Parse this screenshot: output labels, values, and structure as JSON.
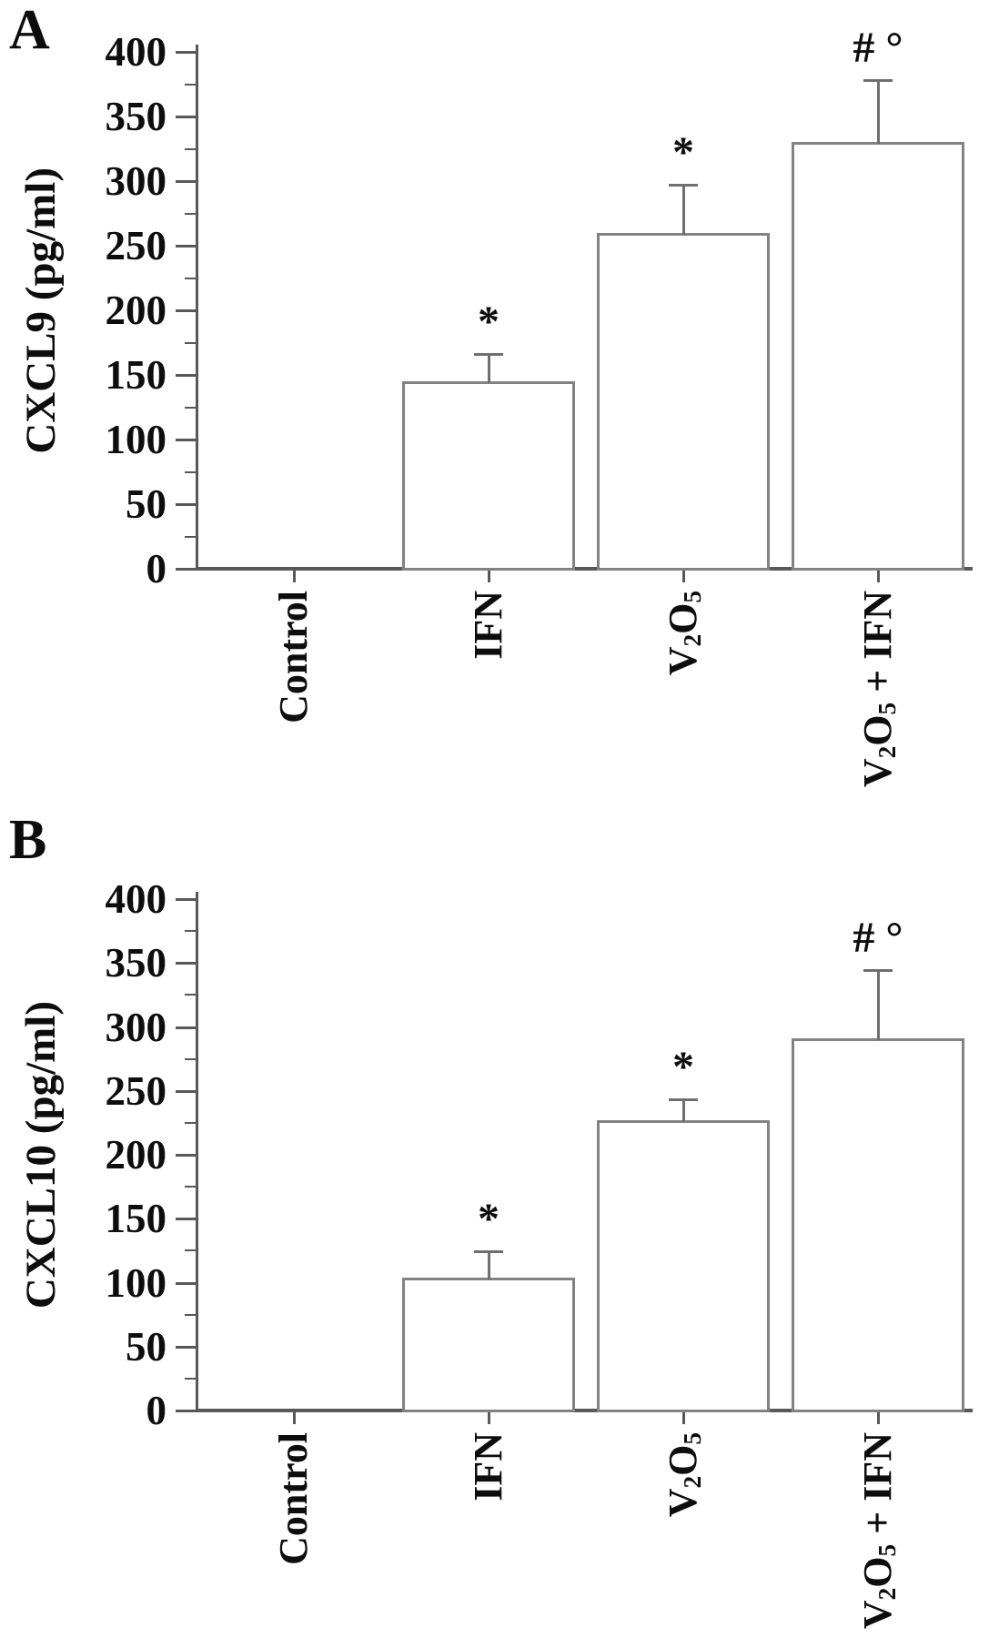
{
  "figure": {
    "background": "#ffffff",
    "description_visible_text_only": true
  },
  "chart_data": [
    {
      "type": "bar",
      "panel_label": "A",
      "title": "",
      "xlabel": "",
      "ylabel": "CXCL9 (pg/ml)",
      "ylim": [
        0,
        400
      ],
      "ytick_major_step": 50,
      "ytick_minor_step": 25,
      "ytick_labels": [
        "0",
        "50",
        "100",
        "150",
        "200",
        "250",
        "300",
        "350",
        "400"
      ],
      "categories": [
        "Control",
        "IFN",
        "V2O5",
        "V2O5 + IFN"
      ],
      "categories_display": [
        "Control",
        "IFN",
        "V~2~O~5~",
        "V~2~O~5~ + IFN"
      ],
      "values": [
        0,
        145,
        260,
        330
      ],
      "errors_upper": [
        0,
        22,
        38,
        49
      ],
      "significance": [
        "",
        "*",
        "*",
        "# °"
      ],
      "grid": false,
      "legend": null,
      "bar_fill": "#ffffff",
      "bar_edge": "#828282",
      "axis_color": "#585858",
      "text_color": "#0d0d0d"
    },
    {
      "type": "bar",
      "panel_label": "B",
      "title": "",
      "xlabel": "",
      "ylabel": "CXCL10 (pg/ml)",
      "ylim": [
        0,
        400
      ],
      "ytick_major_step": 50,
      "ytick_minor_step": 25,
      "ytick_labels": [
        "0",
        "50",
        "100",
        "150",
        "200",
        "250",
        "300",
        "350",
        "400"
      ],
      "categories": [
        "Control",
        "IFN",
        "V2O5",
        "V2O5 + IFN"
      ],
      "categories_display": [
        "Control",
        "IFN",
        "V~2~O~5~",
        "V~2~O~5~ + IFN"
      ],
      "values": [
        0,
        104,
        227,
        291
      ],
      "errors_upper": [
        0,
        21,
        17,
        54
      ],
      "significance": [
        "",
        "*",
        "*",
        "# °"
      ],
      "grid": false,
      "legend": null,
      "bar_fill": "#ffffff",
      "bar_edge": "#828282",
      "axis_color": "#585858",
      "text_color": "#0d0d0d"
    }
  ]
}
